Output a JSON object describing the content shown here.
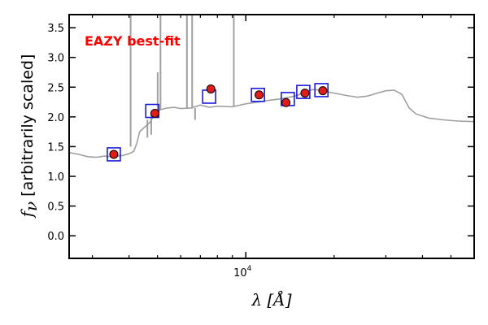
{
  "chart_data": {
    "type": "scatter",
    "annotation": "EAZY best-fit",
    "xlabel": "λ [Å]",
    "ylabel_symbol": "f",
    "ylabel_sub": "ν",
    "ylabel_text": "[arbitrarily scaled]",
    "xscale": "log",
    "xlim": [
      2500,
      60000
    ],
    "ylim": [
      -0.38,
      3.72
    ],
    "y_ticks": [
      0.0,
      0.5,
      1.0,
      1.5,
      2.0,
      2.5,
      3.0,
      3.5
    ],
    "y_tick_labels": [
      "0.0",
      "0.5",
      "1.0",
      "1.5",
      "2.0",
      "2.5",
      "3.0",
      "3.5"
    ],
    "x_tick_labels": [
      {
        "value": 10000,
        "base": "10",
        "exp": "4"
      }
    ],
    "grid": false,
    "colors": {
      "model": "#a0a0a0",
      "observed": "#e21b1b",
      "model_photometry": "#1a1adf",
      "annotation": "#ff0000"
    },
    "series": [
      {
        "role": "model",
        "style": "line",
        "points": [
          [
            2500,
            1.4
          ],
          [
            2700,
            1.37
          ],
          [
            2900,
            1.33
          ],
          [
            3100,
            1.32
          ],
          [
            3300,
            1.34
          ],
          [
            3500,
            1.33
          ],
          [
            3800,
            1.35
          ],
          [
            4000,
            1.38
          ],
          [
            4150,
            1.42
          ],
          [
            4250,
            1.55
          ],
          [
            4350,
            1.75
          ],
          [
            4500,
            1.82
          ],
          [
            4700,
            1.9
          ],
          [
            4900,
            2.05
          ],
          [
            5100,
            2.12
          ],
          [
            5400,
            2.15
          ],
          [
            5700,
            2.16
          ],
          [
            6000,
            2.14
          ],
          [
            6500,
            2.15
          ],
          [
            7000,
            2.2
          ],
          [
            7500,
            2.16
          ],
          [
            8000,
            2.18
          ],
          [
            9000,
            2.17
          ],
          [
            10000,
            2.22
          ],
          [
            11000,
            2.25
          ],
          [
            12000,
            2.28
          ],
          [
            13000,
            2.3
          ],
          [
            14000,
            2.33
          ],
          [
            15000,
            2.36
          ],
          [
            16000,
            2.43
          ],
          [
            17000,
            2.46
          ],
          [
            18000,
            2.45
          ],
          [
            19000,
            2.42
          ],
          [
            20000,
            2.4
          ],
          [
            22000,
            2.36
          ],
          [
            24000,
            2.33
          ],
          [
            26000,
            2.35
          ],
          [
            28000,
            2.4
          ],
          [
            30000,
            2.44
          ],
          [
            32000,
            2.45
          ],
          [
            34000,
            2.38
          ],
          [
            36000,
            2.15
          ],
          [
            38000,
            2.05
          ],
          [
            42000,
            1.98
          ],
          [
            47000,
            1.95
          ],
          [
            53000,
            1.93
          ],
          [
            60000,
            1.92
          ]
        ],
        "lines": [
          [
            4050,
            3.72,
            1.5
          ],
          [
            4620,
            1.65,
            1.95
          ],
          [
            4760,
            1.7,
            2.05
          ],
          [
            5007,
            2.75,
            2.12
          ],
          [
            5120,
            3.72,
            2.12
          ],
          [
            6300,
            3.72,
            2.14
          ],
          [
            6563,
            3.72,
            2.14
          ],
          [
            6716,
            1.95,
            2.15
          ],
          [
            9100,
            3.72,
            2.17
          ]
        ]
      },
      {
        "role": "model_photometry",
        "style": "open-square",
        "points": [
          [
            3550,
            1.37
          ],
          [
            4800,
            2.1
          ],
          [
            7500,
            2.34
          ],
          [
            11000,
            2.37
          ],
          [
            13900,
            2.3
          ],
          [
            15700,
            2.42
          ],
          [
            18100,
            2.45
          ]
        ]
      },
      {
        "role": "observed",
        "style": "filled-circle",
        "points": [
          [
            3550,
            1.37
          ],
          [
            4900,
            2.06
          ],
          [
            7600,
            2.47
          ],
          [
            11100,
            2.37
          ],
          [
            13700,
            2.24
          ],
          [
            15900,
            2.4
          ],
          [
            18300,
            2.44
          ]
        ]
      }
    ]
  }
}
